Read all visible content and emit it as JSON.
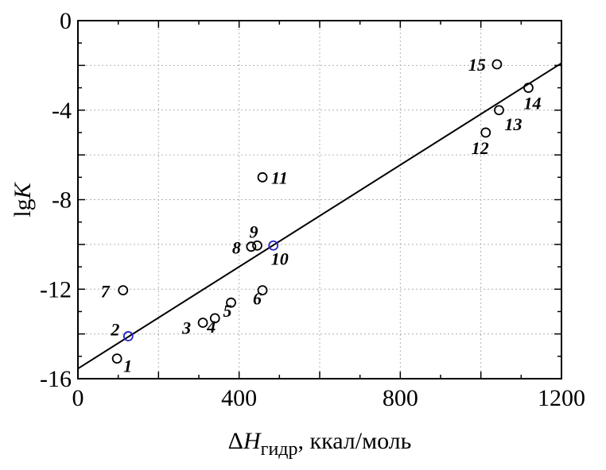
{
  "chart_data": {
    "type": "scatter",
    "title": "",
    "xlabel_prefix": "Δ",
    "xlabel_var": "H",
    "xlabel_sub": "гидр",
    "xlabel_suffix": ", ккал/моль",
    "ylabel_prefix": "lg",
    "ylabel_var": "K",
    "xlim": [
      0,
      1200
    ],
    "ylim": [
      -16,
      0
    ],
    "xticks": [
      0,
      400,
      800,
      1200
    ],
    "yticks": [
      0,
      -4,
      -8,
      -12,
      -16
    ],
    "grid": true,
    "points": [
      {
        "label": "1",
        "x": 97,
        "y": -15.1
      },
      {
        "label": "2",
        "x": 125,
        "y": -14.1
      },
      {
        "label": "3",
        "x": 310,
        "y": -13.5
      },
      {
        "label": "4",
        "x": 340,
        "y": -13.3
      },
      {
        "label": "5",
        "x": 380,
        "y": -12.6
      },
      {
        "label": "6",
        "x": 458,
        "y": -12.05
      },
      {
        "label": "7",
        "x": 112,
        "y": -12.05
      },
      {
        "label": "8",
        "x": 430,
        "y": -10.1
      },
      {
        "label": "9",
        "x": 445,
        "y": -10.05
      },
      {
        "label": "10",
        "x": 485,
        "y": -10.05
      },
      {
        "label": "11",
        "x": 458,
        "y": -7.0
      },
      {
        "label": "12",
        "x": 1012,
        "y": -5.0
      },
      {
        "label": "13",
        "x": 1045,
        "y": -4.0
      },
      {
        "label": "14",
        "x": 1118,
        "y": -3.0
      },
      {
        "label": "15",
        "x": 1040,
        "y": -1.95
      }
    ],
    "fit_line": {
      "x": [
        0,
        1200
      ],
      "y": [
        -15.55,
        -1.9
      ]
    }
  },
  "colors": {
    "axis": "#000000",
    "grid": "#b0b0b0",
    "marker": "#000000",
    "marker_highlight": "#2323c8",
    "fit_line": "#000000"
  }
}
